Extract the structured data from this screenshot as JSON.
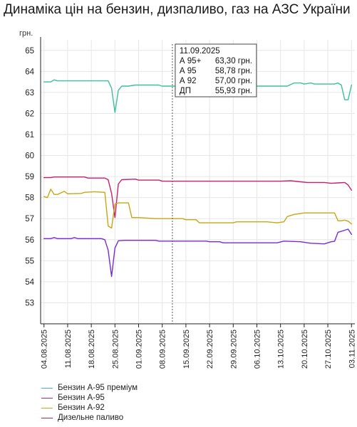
{
  "title": "Динаміка цін на бензин, дизпаливо, газ на АЗС України",
  "colors": {
    "a95_premium": "#3bbf9c",
    "a95": "#c81e6e",
    "a92": "#c8a614",
    "diesel": "#7a2ad2",
    "grid": "#e6e6e6",
    "axis": "#222222",
    "crosshair": "#555555"
  },
  "chart_data": {
    "type": "line",
    "unit_label": "грн.",
    "x_ticks": [
      "04.08.2025",
      "11.08.2025",
      "18.08.2025",
      "25.08.2025",
      "01.09.2025",
      "08.09.2025",
      "15.09.2025",
      "22.09.2025",
      "29.09.2025",
      "06.10.2025",
      "13.10.2025",
      "20.10.2025",
      "27.10.2025",
      "03.11.2025"
    ],
    "y_ticks": [
      53,
      54,
      55,
      56,
      57,
      58,
      59,
      60,
      61,
      62,
      63,
      64,
      65
    ],
    "ylim": [
      52,
      65.5
    ],
    "xlim_days": [
      -1,
      92
    ],
    "grid": true,
    "legend_position": "bottom-left",
    "series": [
      {
        "key": "a95_premium",
        "name": "Бензин А-95 преміум",
        "points": [
          [
            0,
            63.5
          ],
          [
            2,
            63.5
          ],
          [
            3,
            63.6
          ],
          [
            4,
            63.55
          ],
          [
            18,
            63.55
          ],
          [
            19,
            63.55
          ],
          [
            20,
            63.2
          ],
          [
            21,
            62.05
          ],
          [
            22,
            63.1
          ],
          [
            23,
            63.3
          ],
          [
            25,
            63.3
          ],
          [
            27,
            63.35
          ],
          [
            34,
            63.35
          ],
          [
            35,
            63.3
          ],
          [
            48,
            63.3
          ],
          [
            52,
            63.3
          ],
          [
            72,
            63.3
          ],
          [
            74,
            63.45
          ],
          [
            76,
            63.45
          ],
          [
            77,
            63.4
          ],
          [
            79,
            63.45
          ],
          [
            80,
            63.4
          ],
          [
            86,
            63.4
          ],
          [
            87,
            63.45
          ],
          [
            88,
            63.35
          ],
          [
            89,
            62.65
          ],
          [
            90,
            62.65
          ],
          [
            91,
            63.35
          ]
        ]
      },
      {
        "key": "a95",
        "name": "Бензин А-95",
        "points": [
          [
            0,
            58.95
          ],
          [
            2,
            58.95
          ],
          [
            3,
            58.98
          ],
          [
            12,
            58.98
          ],
          [
            13,
            58.93
          ],
          [
            18,
            58.93
          ],
          [
            19,
            58.85
          ],
          [
            20,
            58.2
          ],
          [
            21,
            57.05
          ],
          [
            22,
            58.65
          ],
          [
            23,
            58.85
          ],
          [
            27,
            58.88
          ],
          [
            28,
            58.83
          ],
          [
            34,
            58.83
          ],
          [
            35,
            58.78
          ],
          [
            62,
            58.78
          ],
          [
            70,
            58.78
          ],
          [
            73,
            58.8
          ],
          [
            76,
            58.75
          ],
          [
            78,
            58.72
          ],
          [
            83,
            58.72
          ],
          [
            85,
            58.68
          ],
          [
            87,
            58.7
          ],
          [
            89,
            58.72
          ],
          [
            90,
            58.6
          ],
          [
            91,
            58.35
          ]
        ]
      },
      {
        "key": "a92",
        "name": "Бензин А-92",
        "points": [
          [
            0,
            58.05
          ],
          [
            1,
            58.0
          ],
          [
            2,
            58.4
          ],
          [
            3,
            58.15
          ],
          [
            4,
            58.15
          ],
          [
            6,
            58.3
          ],
          [
            7,
            58.18
          ],
          [
            11,
            58.2
          ],
          [
            12,
            58.25
          ],
          [
            15,
            58.28
          ],
          [
            18,
            58.25
          ],
          [
            19,
            56.65
          ],
          [
            20,
            56.55
          ],
          [
            21,
            57.7
          ],
          [
            22,
            57.75
          ],
          [
            25,
            57.75
          ],
          [
            26,
            57.05
          ],
          [
            28,
            57.05
          ],
          [
            33,
            57.0
          ],
          [
            41,
            57.0
          ],
          [
            42,
            56.95
          ],
          [
            45,
            56.95
          ],
          [
            46,
            56.8
          ],
          [
            52,
            56.8
          ],
          [
            56,
            56.8
          ],
          [
            57,
            56.85
          ],
          [
            66,
            56.85
          ],
          [
            69,
            56.8
          ],
          [
            71,
            56.85
          ],
          [
            72,
            57.1
          ],
          [
            74,
            57.2
          ],
          [
            77,
            57.27
          ],
          [
            81,
            57.27
          ],
          [
            83,
            57.27
          ],
          [
            86,
            57.27
          ],
          [
            87,
            56.9
          ],
          [
            88,
            56.9
          ],
          [
            89,
            56.93
          ],
          [
            90,
            56.88
          ],
          [
            91,
            56.75
          ]
        ]
      },
      {
        "key": "diesel",
        "name": "Дизельне паливо",
        "points": [
          [
            0,
            56.05
          ],
          [
            2,
            56.05
          ],
          [
            3,
            56.1
          ],
          [
            4,
            56.05
          ],
          [
            8,
            56.05
          ],
          [
            9,
            56.1
          ],
          [
            10,
            56.05
          ],
          [
            17,
            56.05
          ],
          [
            18,
            56.0
          ],
          [
            19,
            55.5
          ],
          [
            20,
            54.25
          ],
          [
            21,
            55.6
          ],
          [
            22,
            55.95
          ],
          [
            24,
            55.97
          ],
          [
            33,
            55.97
          ],
          [
            34,
            55.93
          ],
          [
            48,
            55.93
          ],
          [
            49,
            55.9
          ],
          [
            52,
            55.9
          ],
          [
            53,
            55.85
          ],
          [
            60,
            55.85
          ],
          [
            69,
            55.85
          ],
          [
            71,
            55.93
          ],
          [
            76,
            55.9
          ],
          [
            78,
            55.85
          ],
          [
            79,
            55.83
          ],
          [
            83,
            55.8
          ],
          [
            85,
            55.9
          ],
          [
            86,
            55.92
          ],
          [
            87,
            56.35
          ],
          [
            89,
            56.45
          ],
          [
            90,
            56.5
          ],
          [
            91,
            56.25
          ]
        ]
      }
    ],
    "tooltip": {
      "date": "11.09.2025",
      "day_index": 38,
      "rows": [
        {
          "label": "А 95+",
          "value": "63,30 грн."
        },
        {
          "label": "А 95",
          "value": "58,78 грн."
        },
        {
          "label": "А 92",
          "value": "57,00 грн."
        },
        {
          "label": "ДП",
          "value": "55,93 грн."
        }
      ]
    }
  }
}
